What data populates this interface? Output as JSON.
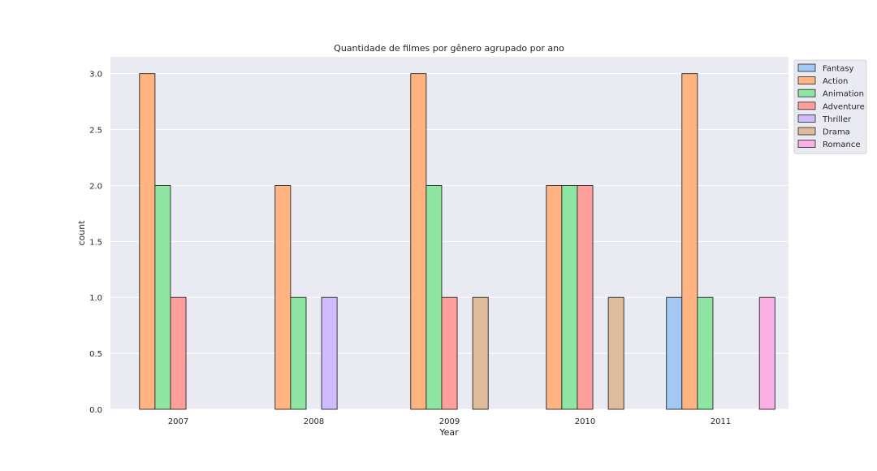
{
  "chart_data": {
    "type": "bar",
    "title": "Quantidade de filmes por gênero agrupado por ano",
    "xlabel": "Year",
    "ylabel": "count",
    "categories": [
      "2007",
      "2008",
      "2009",
      "2010",
      "2011"
    ],
    "ylim": [
      0,
      3.15
    ],
    "yticks": [
      "0.0",
      "0.5",
      "1.0",
      "1.5",
      "2.0",
      "2.5",
      "3.0"
    ],
    "grid": true,
    "legend_position": "upper-right-outside",
    "series": [
      {
        "name": "Fantasy",
        "color": "#a1c9f4",
        "values": [
          0,
          0,
          0,
          0,
          1
        ]
      },
      {
        "name": "Action",
        "color": "#ffb482",
        "values": [
          3,
          2,
          3,
          2,
          3
        ]
      },
      {
        "name": "Animation",
        "color": "#8de5a1",
        "values": [
          2,
          1,
          2,
          2,
          1
        ]
      },
      {
        "name": "Adventure",
        "color": "#ff9f9b",
        "values": [
          1,
          0,
          1,
          2,
          0
        ]
      },
      {
        "name": "Thriller",
        "color": "#d0bbff",
        "values": [
          0,
          1,
          0,
          0,
          0
        ]
      },
      {
        "name": "Drama",
        "color": "#debb9b",
        "values": [
          0,
          0,
          1,
          1,
          0
        ]
      },
      {
        "name": "Romance",
        "color": "#fab0e4",
        "values": [
          0,
          0,
          0,
          0,
          1
        ]
      }
    ]
  }
}
